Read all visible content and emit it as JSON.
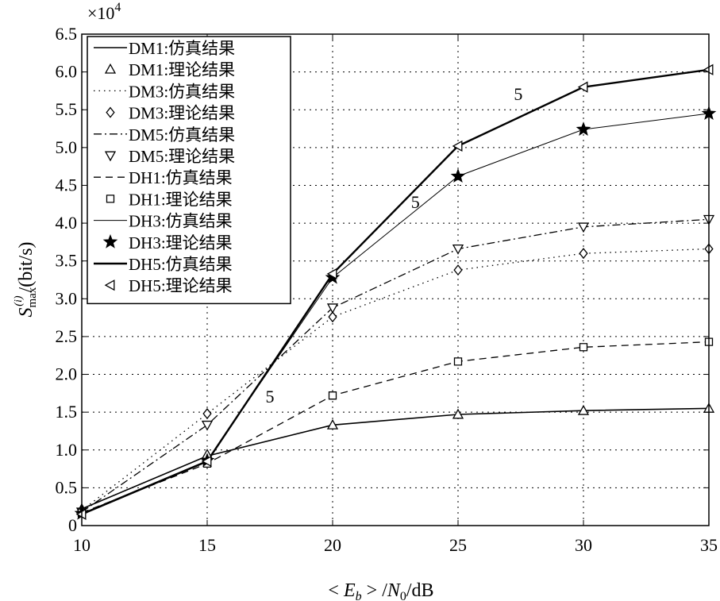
{
  "chart_data": {
    "type": "line",
    "xlabel": "< E_b > / N_0 / dB",
    "xlabel_parts": {
      "lt": "<",
      "e": "E",
      "b": "b",
      "gt": ">",
      "slash1": "/",
      "n": "N",
      "zero": "0",
      "unit": "/dB"
    },
    "ylabel": "S_max^(i) /(bit/s)",
    "ylabel_parts": {
      "s": "S",
      "sub": "max",
      "sup": "(i)",
      "unit": "/(bit/s)"
    },
    "y_multiplier_text": "×10",
    "y_multiplier_exp": "4",
    "xlim": [
      10,
      35
    ],
    "ylim": [
      0,
      6.5
    ],
    "x": [
      10,
      15,
      20,
      25,
      30,
      35
    ],
    "x_tick_labels": [
      "10",
      "15",
      "20",
      "25",
      "30",
      "35"
    ],
    "y_tick_values": [
      0,
      0.5,
      1.0,
      1.5,
      2.0,
      2.5,
      3.0,
      3.5,
      4.0,
      4.5,
      5.0,
      5.5,
      6.0,
      6.5
    ],
    "y_tick_labels": [
      "0",
      "0.5",
      "1.0",
      "1.5",
      "2.0",
      "2.5",
      "3.0",
      "3.5",
      "4.0",
      "4.5",
      "5.0",
      "5.5",
      "6.0",
      "6.5"
    ],
    "grid": true,
    "legend_placement": "top-left",
    "series": [
      {
        "name": "DM1:仿真结果",
        "line": "solid",
        "width": 1.6,
        "marker": "none",
        "values": [
          0.22,
          0.92,
          1.33,
          1.47,
          1.52,
          1.55
        ]
      },
      {
        "name": "DM1:理论结果",
        "line": "none",
        "marker": "triangle-up",
        "values": [
          0.22,
          0.94,
          1.33,
          1.47,
          1.52,
          1.55
        ]
      },
      {
        "name": "DM3:仿真结果",
        "line": "dotted",
        "width": 1.3,
        "marker": "none",
        "values": [
          0.2,
          1.48,
          2.76,
          3.38,
          3.6,
          3.66
        ]
      },
      {
        "name": "DM3:理论结果",
        "line": "none",
        "marker": "diamond",
        "values": [
          0.2,
          1.48,
          2.76,
          3.38,
          3.6,
          3.66
        ]
      },
      {
        "name": "DM5:仿真结果",
        "line": "dashdot",
        "width": 1.3,
        "marker": "none",
        "values": [
          0.18,
          1.33,
          2.88,
          3.66,
          3.95,
          4.05
        ]
      },
      {
        "name": "DM5:理论结果",
        "line": "none",
        "marker": "triangle-down",
        "values": [
          0.18,
          1.33,
          2.88,
          3.66,
          3.95,
          4.05
        ]
      },
      {
        "name": "DH1:仿真结果",
        "line": "dashed",
        "width": 1.3,
        "marker": "none",
        "values": [
          0.17,
          0.82,
          1.72,
          2.17,
          2.36,
          2.43
        ]
      },
      {
        "name": "DH1:理论结果",
        "line": "none",
        "marker": "square",
        "values": [
          0.17,
          0.82,
          1.72,
          2.17,
          2.36,
          2.43
        ]
      },
      {
        "name": "DH3:仿真结果",
        "line": "solid",
        "width": 1.0,
        "marker": "none",
        "values": [
          0.16,
          0.86,
          3.28,
          4.62,
          5.24,
          5.45
        ]
      },
      {
        "name": "DH3:理论结果",
        "line": "none",
        "marker": "star",
        "values": [
          0.16,
          0.86,
          3.28,
          4.62,
          5.24,
          5.45
        ]
      },
      {
        "name": "DH5:仿真结果",
        "line": "solid",
        "width": 2.4,
        "marker": "none",
        "values": [
          0.15,
          0.85,
          3.33,
          5.02,
          5.8,
          6.03
        ]
      },
      {
        "name": "DH5:理论结果",
        "line": "none",
        "marker": "triangle-left",
        "values": [
          0.15,
          0.85,
          3.33,
          5.02,
          5.8,
          6.03
        ]
      }
    ],
    "annotations": [
      {
        "text": "5",
        "x": 17.5,
        "y": 1.63
      },
      {
        "text": "5",
        "x": 23.3,
        "y": 4.2
      },
      {
        "text": "5",
        "x": 27.4,
        "y": 5.63
      }
    ]
  }
}
